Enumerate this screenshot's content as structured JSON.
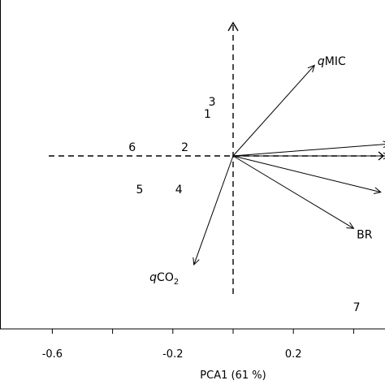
{
  "chart_data": {
    "type": "scatter",
    "title": "",
    "xlabel": "PCA1 (61 %)",
    "ylabel": "",
    "x_range": [
      -0.74,
      0.5
    ],
    "y_range": [
      -0.57,
      0.41
    ],
    "x_ticks": [
      {
        "value": -0.6,
        "label": "-0.6"
      },
      {
        "value": -0.4,
        "label": ""
      },
      {
        "value": -0.2,
        "label": "-0.2"
      },
      {
        "value": 0.0,
        "label": ""
      },
      {
        "value": 0.2,
        "label": "0.2"
      },
      {
        "value": 0.4,
        "label": ""
      }
    ],
    "grid": false,
    "reference_lines": {
      "x": 0,
      "y": 0,
      "style": "dashed"
    },
    "points": [
      {
        "label": "1",
        "x": -0.085,
        "y": 0.14
      },
      {
        "label": "2",
        "x": -0.16,
        "y": 0.03
      },
      {
        "label": "3",
        "x": -0.07,
        "y": 0.18
      },
      {
        "label": "4",
        "x": -0.18,
        "y": -0.11
      },
      {
        "label": "5",
        "x": -0.31,
        "y": -0.11
      },
      {
        "label": "6",
        "x": -0.335,
        "y": 0.03
      },
      {
        "label": "7",
        "x": 0.41,
        "y": -0.5
      }
    ],
    "loadings": [
      {
        "label": "qMIC",
        "label_italic": "q",
        "label_main": "MIC",
        "label_sub": "",
        "x": 0.27,
        "y": 0.3,
        "label_x": 0.28,
        "label_y": 0.315
      },
      {
        "label": "qCO2",
        "label_italic": "q",
        "label_main": "CO",
        "label_sub": "2",
        "x": -0.13,
        "y": -0.36,
        "label_x": -0.18,
        "label_y": -0.4
      },
      {
        "label": "BR",
        "x": 0.4,
        "y": -0.24,
        "label_x": 0.41,
        "label_y": -0.26
      },
      {
        "label": "",
        "x": 0.49,
        "y": -0.12,
        "label_x": 0.5,
        "label_y": -0.12
      },
      {
        "label": "",
        "x": 0.52,
        "y": 0.04,
        "label_x": 0.52,
        "label_y": 0.04
      },
      {
        "label": "",
        "x": 0.52,
        "y": 0.0,
        "label_x": 0.52,
        "label_y": 0.0
      }
    ]
  }
}
